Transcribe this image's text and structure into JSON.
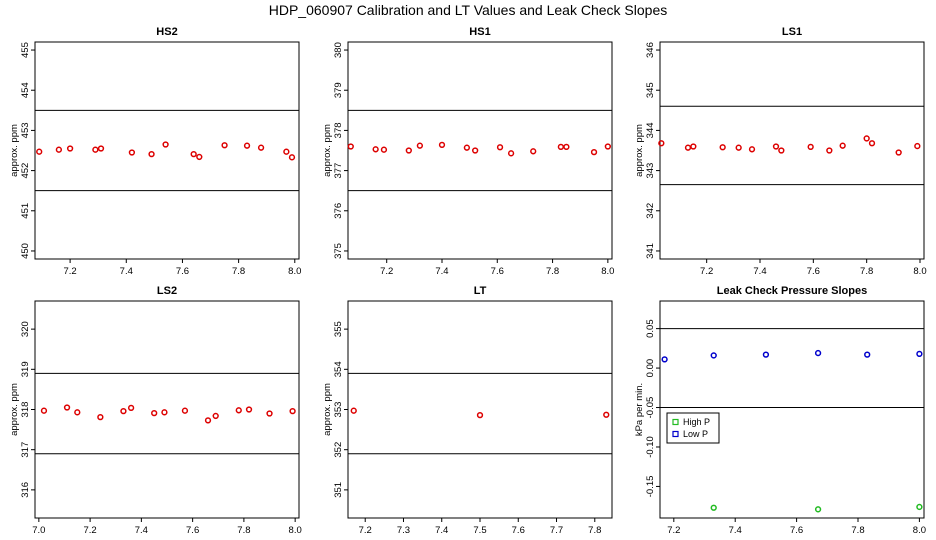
{
  "page_title": "HDP_060907  Calibration and LT Values and Leak Check Slopes",
  "chart_data": [
    {
      "type": "scatter",
      "title": "HS2",
      "xlabel": "",
      "ylabel": "approx. ppm",
      "xlim": [
        7.075,
        8.015
      ],
      "ylim": [
        449.8,
        455.2
      ],
      "xticks": [
        "7.2",
        "7.4",
        "7.6",
        "7.8",
        "8.0"
      ],
      "yticks": [
        "450",
        "451",
        "452",
        "453",
        "454",
        "455"
      ],
      "hlines": [
        453.5,
        451.5
      ],
      "series": [
        {
          "color": "#dd0000",
          "points": [
            {
              "x": 7.09,
              "y": 452.47
            },
            {
              "x": 7.16,
              "y": 452.52
            },
            {
              "x": 7.2,
              "y": 452.55
            },
            {
              "x": 7.29,
              "y": 452.52
            },
            {
              "x": 7.31,
              "y": 452.55
            },
            {
              "x": 7.42,
              "y": 452.45
            },
            {
              "x": 7.49,
              "y": 452.41
            },
            {
              "x": 7.54,
              "y": 452.65
            },
            {
              "x": 7.64,
              "y": 452.41
            },
            {
              "x": 7.66,
              "y": 452.34
            },
            {
              "x": 7.75,
              "y": 452.63
            },
            {
              "x": 7.83,
              "y": 452.62
            },
            {
              "x": 7.88,
              "y": 452.57
            },
            {
              "x": 7.97,
              "y": 452.47
            },
            {
              "x": 7.99,
              "y": 452.33
            }
          ]
        }
      ]
    },
    {
      "type": "scatter",
      "title": "HS1",
      "xlabel": "",
      "ylabel": "approx. ppm",
      "xlim": [
        7.06,
        8.015
      ],
      "ylim": [
        374.8,
        380.2
      ],
      "xticks": [
        "7.2",
        "7.4",
        "7.6",
        "7.8",
        "8.0"
      ],
      "yticks": [
        "375",
        "376",
        "377",
        "378",
        "379",
        "380"
      ],
      "hlines": [
        378.5,
        376.5
      ],
      "series": [
        {
          "color": "#dd0000",
          "points": [
            {
              "x": 7.07,
              "y": 377.6
            },
            {
              "x": 7.16,
              "y": 377.53
            },
            {
              "x": 7.19,
              "y": 377.52
            },
            {
              "x": 7.28,
              "y": 377.5
            },
            {
              "x": 7.32,
              "y": 377.62
            },
            {
              "x": 7.4,
              "y": 377.64
            },
            {
              "x": 7.49,
              "y": 377.57
            },
            {
              "x": 7.52,
              "y": 377.5
            },
            {
              "x": 7.61,
              "y": 377.58
            },
            {
              "x": 7.65,
              "y": 377.43
            },
            {
              "x": 7.73,
              "y": 377.48
            },
            {
              "x": 7.83,
              "y": 377.59
            },
            {
              "x": 7.85,
              "y": 377.59
            },
            {
              "x": 7.95,
              "y": 377.46
            },
            {
              "x": 8.0,
              "y": 377.6
            }
          ]
        }
      ]
    },
    {
      "type": "scatter",
      "title": "LS1",
      "xlabel": "",
      "ylabel": "approx. ppm",
      "xlim": [
        7.025,
        8.015
      ],
      "ylim": [
        340.8,
        346.2
      ],
      "xticks": [
        "7.2",
        "7.4",
        "7.6",
        "7.8",
        "8.0"
      ],
      "yticks": [
        "341",
        "342",
        "343",
        "344",
        "345",
        "346"
      ],
      "hlines": [
        344.6,
        342.65
      ],
      "series": [
        {
          "color": "#dd0000",
          "points": [
            {
              "x": 7.03,
              "y": 343.68
            },
            {
              "x": 7.13,
              "y": 343.57
            },
            {
              "x": 7.15,
              "y": 343.6
            },
            {
              "x": 7.26,
              "y": 343.58
            },
            {
              "x": 7.32,
              "y": 343.57
            },
            {
              "x": 7.37,
              "y": 343.53
            },
            {
              "x": 7.46,
              "y": 343.6
            },
            {
              "x": 7.48,
              "y": 343.5
            },
            {
              "x": 7.59,
              "y": 343.59
            },
            {
              "x": 7.66,
              "y": 343.5
            },
            {
              "x": 7.71,
              "y": 343.62
            },
            {
              "x": 7.8,
              "y": 343.8
            },
            {
              "x": 7.82,
              "y": 343.68
            },
            {
              "x": 7.92,
              "y": 343.45
            },
            {
              "x": 7.99,
              "y": 343.61
            }
          ]
        }
      ]
    },
    {
      "type": "scatter",
      "title": "LS2",
      "xlabel": "",
      "ylabel": "approx. ppm",
      "xlim": [
        6.985,
        8.015
      ],
      "ylim": [
        315.3,
        320.7
      ],
      "xticks": [
        "7.0",
        "7.2",
        "7.4",
        "7.6",
        "7.8",
        "8.0"
      ],
      "yticks": [
        "316",
        "317",
        "318",
        "319",
        "320"
      ],
      "hlines": [
        318.9,
        316.9
      ],
      "series": [
        {
          "color": "#dd0000",
          "points": [
            {
              "x": 7.02,
              "y": 317.97
            },
            {
              "x": 7.11,
              "y": 318.05
            },
            {
              "x": 7.15,
              "y": 317.93
            },
            {
              "x": 7.24,
              "y": 317.81
            },
            {
              "x": 7.33,
              "y": 317.96
            },
            {
              "x": 7.36,
              "y": 318.04
            },
            {
              "x": 7.45,
              "y": 317.91
            },
            {
              "x": 7.49,
              "y": 317.93
            },
            {
              "x": 7.57,
              "y": 317.97
            },
            {
              "x": 7.66,
              "y": 317.73
            },
            {
              "x": 7.69,
              "y": 317.84
            },
            {
              "x": 7.78,
              "y": 317.98
            },
            {
              "x": 7.82,
              "y": 318.0
            },
            {
              "x": 7.9,
              "y": 317.9
            },
            {
              "x": 7.99,
              "y": 317.96
            }
          ]
        }
      ]
    },
    {
      "type": "scatter",
      "title": "LT",
      "xlabel": "",
      "ylabel": "approx. ppm",
      "xlim": [
        7.155,
        7.845
      ],
      "ylim": [
        350.3,
        355.7
      ],
      "xticks": [
        "7.2",
        "7.3",
        "7.4",
        "7.5",
        "7.6",
        "7.7",
        "7.8"
      ],
      "yticks": [
        "351",
        "352",
        "353",
        "354",
        "355"
      ],
      "hlines": [
        353.9,
        351.9
      ],
      "series": [
        {
          "color": "#dd0000",
          "points": [
            {
              "x": 7.17,
              "y": 352.97
            },
            {
              "x": 7.5,
              "y": 352.86
            },
            {
              "x": 7.83,
              "y": 352.87
            }
          ]
        }
      ]
    },
    {
      "type": "scatter",
      "title": "Leak Check Pressure Slopes",
      "xlabel": "",
      "ylabel": "kPa per min.",
      "xlim": [
        7.155,
        8.015
      ],
      "ylim": [
        -0.19,
        0.085
      ],
      "xticks": [
        "7.2",
        "7.4",
        "7.6",
        "7.8",
        "8.0"
      ],
      "yticks": [
        "-0.15",
        "-0.10",
        "-0.05",
        "0.00",
        "0.05"
      ],
      "hlines": [
        0.05,
        -0.05
      ],
      "legend_position": "left",
      "series": [
        {
          "name": "High P",
          "color": "#22bb22",
          "points": [
            {
              "x": 7.33,
              "y": -0.177
            },
            {
              "x": 7.67,
              "y": -0.179
            },
            {
              "x": 8.0,
              "y": -0.176
            }
          ]
        },
        {
          "name": "Low P",
          "color": "#0000cc",
          "points": [
            {
              "x": 7.17,
              "y": 0.011
            },
            {
              "x": 7.33,
              "y": 0.016
            },
            {
              "x": 7.5,
              "y": 0.017
            },
            {
              "x": 7.67,
              "y": 0.019
            },
            {
              "x": 7.83,
              "y": 0.017
            },
            {
              "x": 8.0,
              "y": 0.018
            }
          ]
        }
      ]
    }
  ]
}
